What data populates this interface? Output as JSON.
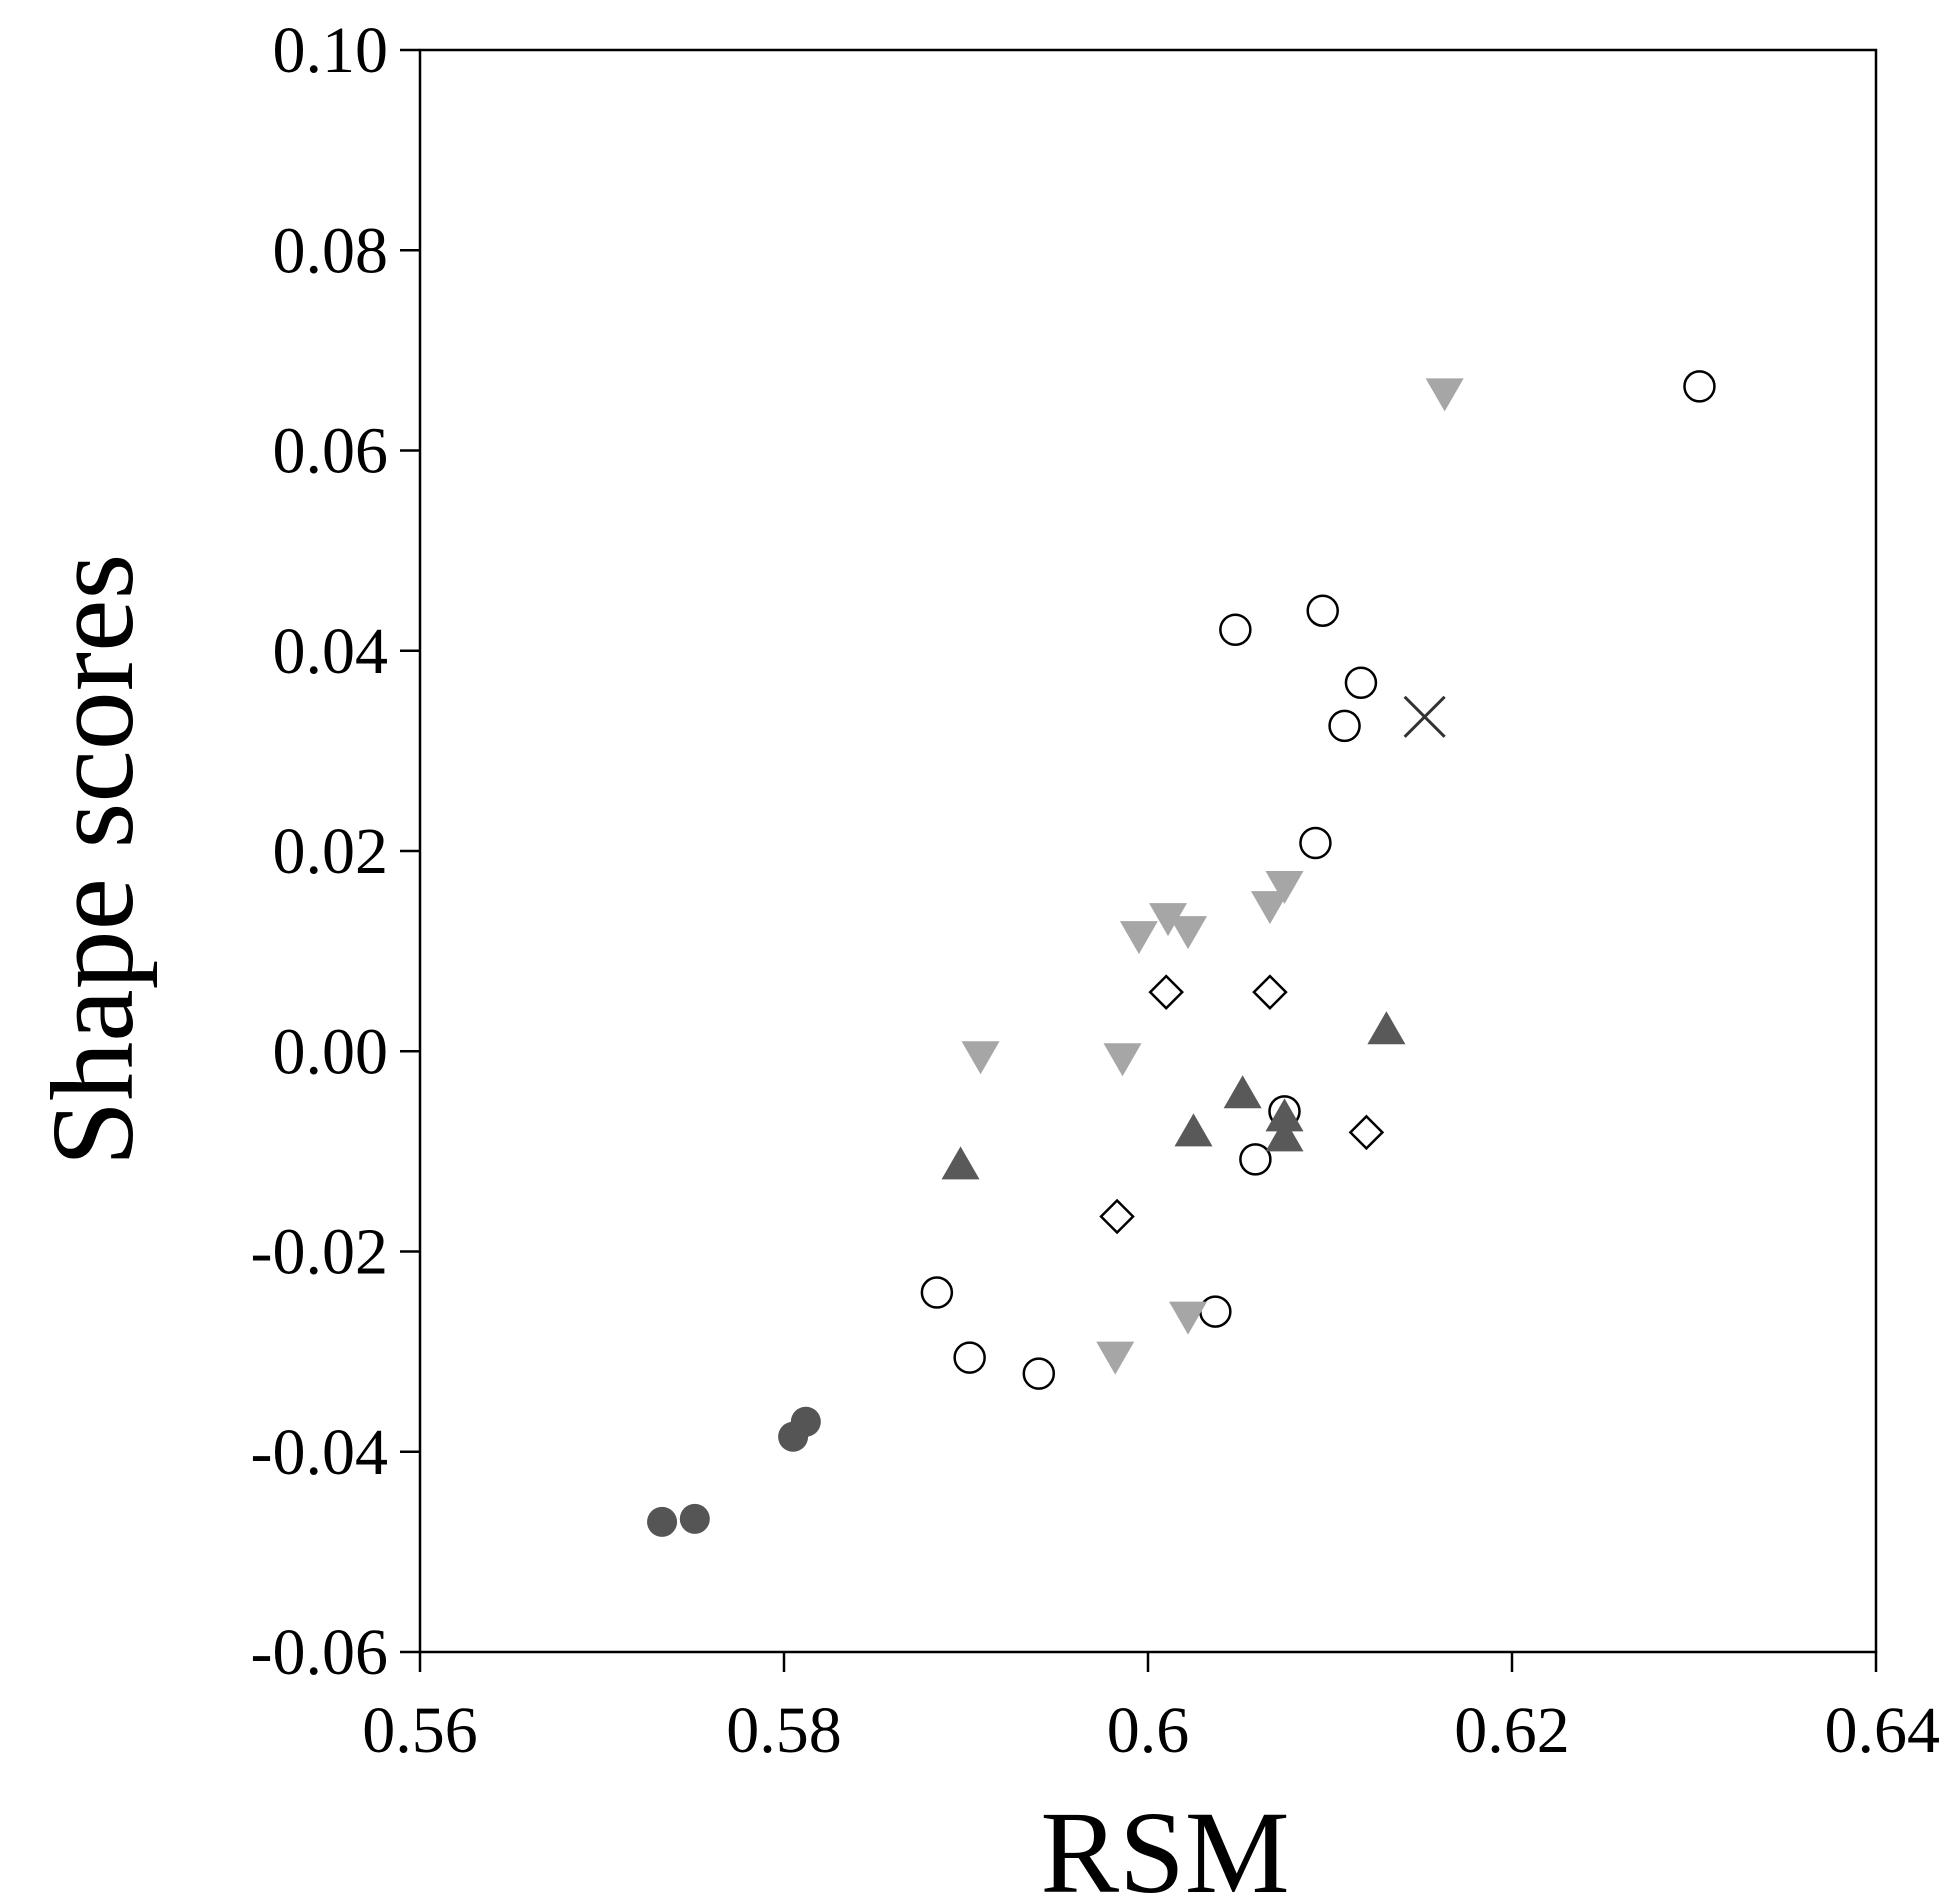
{
  "chart_data": {
    "type": "scatter",
    "xlabel": "RSM",
    "ylabel": "Shape scores",
    "xlim": [
      0.56,
      0.64
    ],
    "ylim": [
      -0.06,
      0.1
    ],
    "x_ticks": [
      "0.56",
      "0.58",
      "0.6",
      "0.62",
      "0.64"
    ],
    "y_ticks": [
      "0.10",
      "0.08",
      "0.06",
      "0.04",
      "0.02",
      "0.00",
      "-0.02",
      "-0.04",
      "-0.06"
    ],
    "grid": false,
    "legend": "none",
    "series": [
      {
        "marker": "filled-circle",
        "color": "#555555",
        "points": [
          [
            0.5733,
            -0.047
          ],
          [
            0.5751,
            -0.0467
          ],
          [
            0.5805,
            -0.0385
          ],
          [
            0.5812,
            -0.037
          ]
        ]
      },
      {
        "marker": "open-circle",
        "color": "#000000",
        "points": [
          [
            0.5884,
            -0.0241
          ],
          [
            0.5902,
            -0.0306
          ],
          [
            0.594,
            -0.0322
          ],
          [
            0.6037,
            -0.026
          ],
          [
            0.6059,
            -0.0108
          ],
          [
            0.6075,
            -0.006
          ],
          [
            0.6048,
            0.0421
          ],
          [
            0.6096,
            0.044
          ],
          [
            0.6117,
            0.0368
          ],
          [
            0.6108,
            0.0325
          ],
          [
            0.6092,
            0.0208
          ],
          [
            0.6303,
            0.0664
          ]
        ]
      },
      {
        "marker": "inverted-triangle",
        "color": "#a6a6a6",
        "points": [
          [
            0.5908,
            -0.0005
          ],
          [
            0.5986,
            -0.0007
          ],
          [
            0.5982,
            -0.0305
          ],
          [
            0.6022,
            -0.0265
          ],
          [
            0.5995,
            0.0115
          ],
          [
            0.6011,
            0.0133
          ],
          [
            0.6022,
            0.012
          ],
          [
            0.6067,
            0.0145
          ],
          [
            0.6075,
            0.0165
          ],
          [
            0.6163,
            0.0657
          ]
        ]
      },
      {
        "marker": "triangle",
        "color": "#595959",
        "points": [
          [
            0.5897,
            -0.0113
          ],
          [
            0.6025,
            -0.008
          ],
          [
            0.6052,
            -0.0042
          ],
          [
            0.6075,
            -0.0065
          ],
          [
            0.6075,
            -0.0085
          ],
          [
            0.6131,
            0.0022
          ]
        ]
      },
      {
        "marker": "open-diamond",
        "color": "#000000",
        "points": [
          [
            0.601,
            0.0059
          ],
          [
            0.6067,
            0.0059
          ],
          [
            0.5983,
            -0.0165
          ],
          [
            0.612,
            -0.0081
          ]
        ]
      },
      {
        "marker": "cross",
        "color": "#333333",
        "points": [
          [
            0.6152,
            0.0334
          ]
        ]
      }
    ]
  }
}
